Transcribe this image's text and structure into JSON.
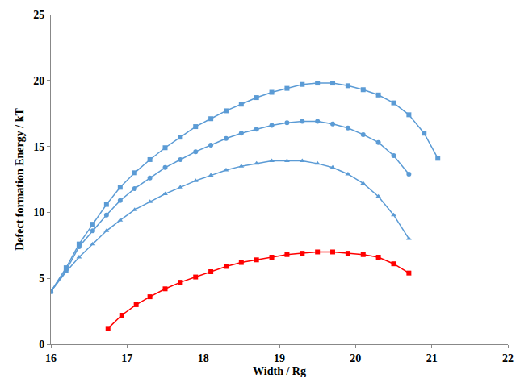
{
  "chart_data": {
    "type": "line",
    "x_label": "Width / Rg",
    "y_label": "Defect formation Energy / kT",
    "xlim": [
      16,
      22
    ],
    "xticks": [
      16,
      17,
      18,
      19,
      20,
      21,
      22
    ],
    "ylim": [
      0,
      25
    ],
    "yticks": [
      0,
      5,
      10,
      15,
      20,
      25
    ],
    "grid": false,
    "series": [
      {
        "color": "#5b9bd5",
        "marker": "square",
        "line_style": "solid",
        "x": [
          16,
          16.2,
          16.37,
          16.55,
          16.73,
          16.91,
          17.1,
          17.3,
          17.5,
          17.7,
          17.9,
          18.1,
          18.3,
          18.5,
          18.7,
          18.9,
          19.1,
          19.3,
          19.5,
          19.7,
          19.9,
          20.1,
          20.3,
          20.5,
          20.7,
          20.9,
          21.08
        ],
        "values": [
          4,
          5.8,
          7.6,
          9.1,
          10.6,
          11.9,
          13.0,
          14.0,
          14.9,
          15.7,
          16.5,
          17.1,
          17.7,
          18.2,
          18.7,
          19.1,
          19.4,
          19.7,
          19.8,
          19.8,
          19.6,
          19.3,
          18.9,
          18.3,
          17.4,
          16.0,
          14.1
        ]
      },
      {
        "color": "#5b9bd5",
        "marker": "circle",
        "line_style": "solid",
        "x": [
          16,
          16.2,
          16.37,
          16.55,
          16.73,
          16.91,
          17.1,
          17.3,
          17.5,
          17.7,
          17.9,
          18.1,
          18.3,
          18.5,
          18.7,
          18.9,
          19.1,
          19.3,
          19.5,
          19.7,
          19.9,
          20.1,
          20.3,
          20.5,
          20.7
        ],
        "values": [
          4,
          5.6,
          7.4,
          8.6,
          9.8,
          10.9,
          11.8,
          12.6,
          13.4,
          14.0,
          14.6,
          15.1,
          15.6,
          16.0,
          16.3,
          16.6,
          16.8,
          16.9,
          16.9,
          16.7,
          16.4,
          15.9,
          15.3,
          14.3,
          12.9
        ]
      },
      {
        "color": "#5b9bd5",
        "marker": "triangle",
        "line_style": "solid",
        "x": [
          16,
          16.2,
          16.37,
          16.55,
          16.73,
          16.91,
          17.1,
          17.3,
          17.5,
          17.7,
          17.9,
          18.1,
          18.3,
          18.5,
          18.7,
          18.9,
          19.1,
          19.3,
          19.5,
          19.7,
          19.9,
          20.1,
          20.3,
          20.5,
          20.7
        ],
        "values": [
          4,
          5.5,
          6.6,
          7.6,
          8.6,
          9.4,
          10.2,
          10.8,
          11.4,
          11.9,
          12.4,
          12.8,
          13.2,
          13.5,
          13.7,
          13.9,
          13.9,
          13.9,
          13.7,
          13.4,
          12.9,
          12.2,
          11.2,
          9.8,
          8.0
        ]
      },
      {
        "color": "#ff0000",
        "marker": "square",
        "line_style": "solid",
        "x": [
          16.75,
          16.93,
          17.12,
          17.3,
          17.5,
          17.7,
          17.9,
          18.1,
          18.3,
          18.5,
          18.7,
          18.9,
          19.1,
          19.3,
          19.5,
          19.7,
          19.9,
          20.1,
          20.3,
          20.5,
          20.7
        ],
        "values": [
          1.2,
          2.2,
          3.0,
          3.6,
          4.2,
          4.7,
          5.1,
          5.5,
          5.9,
          6.2,
          6.4,
          6.6,
          6.8,
          6.9,
          7.0,
          7.0,
          6.9,
          6.8,
          6.6,
          6.1,
          5.4
        ]
      }
    ]
  }
}
